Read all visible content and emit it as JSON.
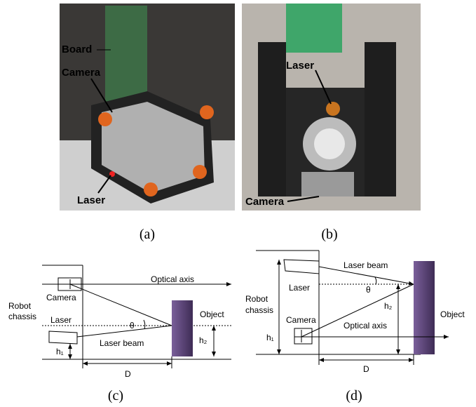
{
  "panels": [
    {
      "caption": "(a)",
      "labels": [
        "Board",
        "Camera",
        "Laser"
      ]
    },
    {
      "caption": "(b)",
      "labels": [
        "Laser",
        "Camera"
      ]
    },
    {
      "caption": "(c)",
      "labels": [
        "Optical axis",
        "Camera",
        "Robot",
        "chassis",
        "Laser",
        "θ",
        "Object",
        "Laser beam",
        "h₁",
        "h₂",
        "D"
      ]
    },
    {
      "caption": "(d)",
      "labels": [
        "Laser beam",
        "Laser",
        "θ",
        "Robot",
        "chassis",
        "h₂",
        "Object",
        "Camera",
        "Optical axis",
        "h₁",
        "D"
      ]
    }
  ]
}
